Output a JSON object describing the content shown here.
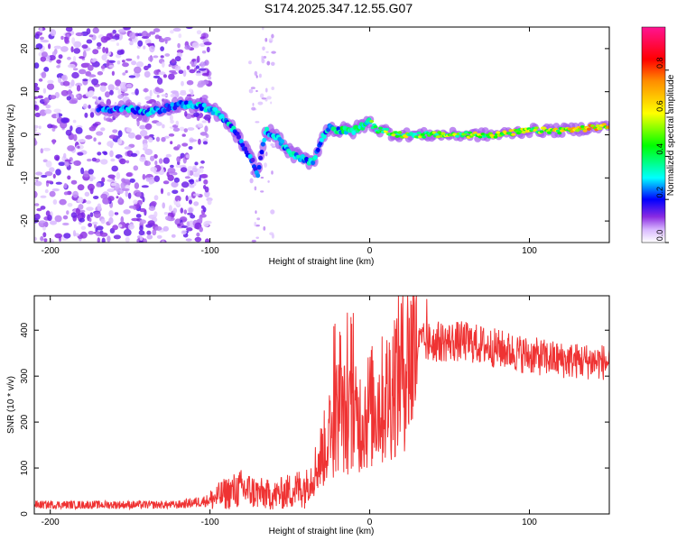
{
  "figure": {
    "title": "S174.2025.347.12.55.G07"
  },
  "chart_data": [
    {
      "type": "heatmap",
      "title": "S174.2025.347.12.55.G07",
      "xlabel": "Height of straight line (km)",
      "ylabel": "Frequency (Hz)",
      "xlim": [
        -210,
        150
      ],
      "ylim": [
        -25,
        25
      ],
      "xticks": [
        -200,
        -100,
        0,
        100
      ],
      "xtick_labels": [
        "-200",
        "-100",
        "0",
        "100"
      ],
      "yticks": [
        -20,
        -10,
        0,
        10,
        20
      ],
      "ytick_labels": [
        "-20",
        "-10",
        "0",
        "10",
        "20"
      ],
      "colorbar": {
        "label": "Normalized spectral amplitude",
        "range": [
          0,
          1
        ],
        "ticks": [
          0,
          0.2,
          0.4,
          0.6,
          0.8
        ],
        "tick_labels": [
          "0.0",
          "0.2",
          "0.4",
          "0.6",
          "0.8"
        ]
      },
      "ridge": {
        "x": [
          -170,
          -160,
          -150,
          -140,
          -130,
          -120,
          -110,
          -100,
          -95,
          -90,
          -85,
          -80,
          -75,
          -70,
          -65,
          -60,
          -55,
          -50,
          -45,
          -40,
          -35,
          -30,
          -25,
          -20,
          -15,
          -10,
          -5,
          0,
          5,
          10,
          15,
          20,
          30,
          40,
          60,
          80,
          100,
          120,
          150
        ],
        "y": [
          6,
          6,
          6,
          5,
          6,
          7,
          7,
          6,
          5,
          3,
          1,
          -2,
          -5,
          -9,
          1,
          0,
          -2,
          -4,
          -5,
          -6,
          -6,
          -1,
          2,
          1,
          1,
          1,
          2,
          3,
          1,
          1,
          0,
          0,
          0,
          0,
          0,
          0,
          1,
          1,
          2
        ],
        "amp": [
          0.25,
          0.25,
          0.3,
          0.3,
          0.25,
          0.25,
          0.3,
          0.3,
          0.3,
          0.3,
          0.3,
          0.25,
          0.25,
          0.22,
          0.3,
          0.3,
          0.3,
          0.3,
          0.3,
          0.3,
          0.3,
          0.3,
          0.3,
          0.35,
          0.4,
          0.45,
          0.45,
          0.45,
          0.45,
          0.55,
          0.55,
          0.55,
          0.5,
          0.5,
          0.55,
          0.6,
          0.55,
          0.6,
          0.7
        ]
      }
    },
    {
      "type": "line",
      "xlabel": "Height of straight line (km)",
      "ylabel": "SNR (10 * v/v)",
      "xlim": [
        -210,
        150
      ],
      "ylim": [
        0,
        475
      ],
      "xticks": [
        -200,
        -100,
        0,
        100
      ],
      "xtick_labels": [
        "-200",
        "-100",
        "0",
        "100"
      ],
      "yticks": [
        0,
        100,
        200,
        300,
        400
      ],
      "ytick_labels": [
        "0",
        "100",
        "200",
        "300",
        "400"
      ],
      "series": [
        {
          "name": "SNR",
          "color": "#ef3333",
          "x": [
            -210,
            -180,
            -150,
            -120,
            -100,
            -90,
            -80,
            -70,
            -60,
            -50,
            -40,
            -35,
            -30,
            -25,
            -20,
            -15,
            -10,
            -5,
            0,
            5,
            10,
            15,
            20,
            25,
            30,
            40,
            60,
            80,
            100,
            120,
            150
          ],
          "y": [
            20,
            20,
            20,
            20,
            30,
            45,
            55,
            45,
            40,
            50,
            60,
            90,
            130,
            170,
            220,
            210,
            200,
            210,
            230,
            240,
            250,
            290,
            320,
            350,
            370,
            375,
            375,
            360,
            345,
            335,
            330
          ]
        }
      ]
    }
  ]
}
